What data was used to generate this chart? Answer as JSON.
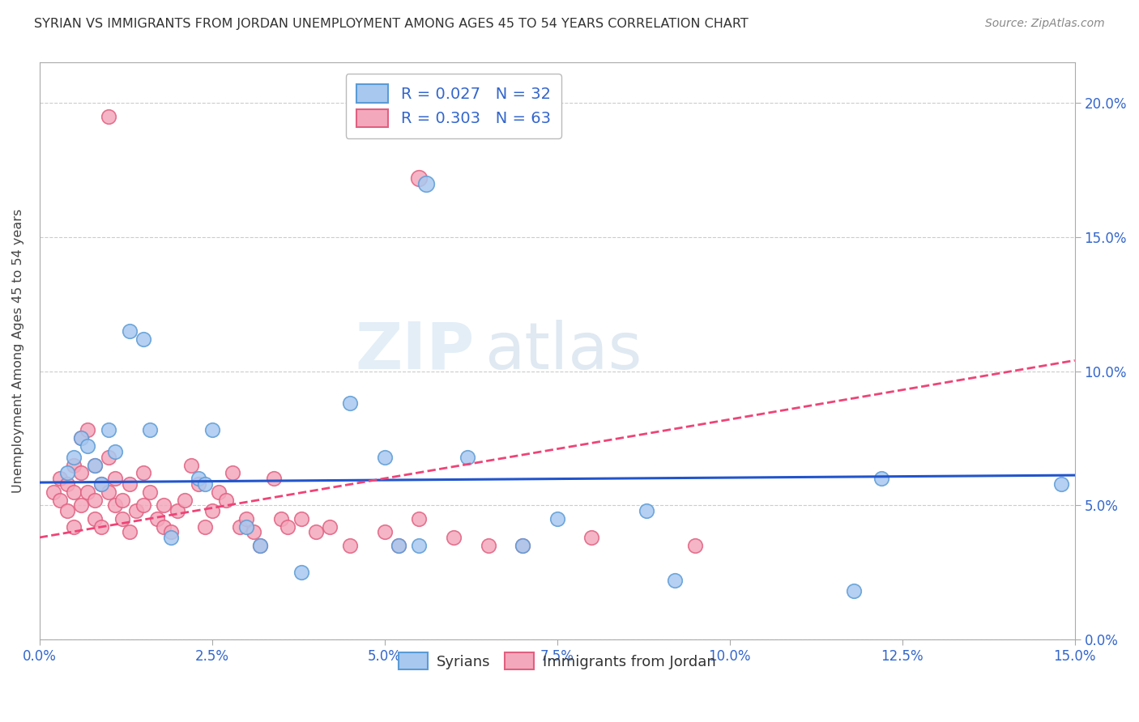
{
  "title": "SYRIAN VS IMMIGRANTS FROM JORDAN UNEMPLOYMENT AMONG AGES 45 TO 54 YEARS CORRELATION CHART",
  "source": "Source: ZipAtlas.com",
  "xlabel_ticks": [
    "0.0%",
    "2.5%",
    "5.0%",
    "7.5%",
    "10.0%",
    "12.5%",
    "15.0%"
  ],
  "xlabel_vals": [
    0.0,
    2.5,
    5.0,
    7.5,
    10.0,
    12.5,
    15.0
  ],
  "ylabel": "Unemployment Among Ages 45 to 54 years",
  "ylabel_ticks": [
    "0.0%",
    "5.0%",
    "10.0%",
    "15.0%",
    "20.0%"
  ],
  "ylabel_vals": [
    0.0,
    5.0,
    10.0,
    15.0,
    20.0
  ],
  "xlim": [
    0.0,
    15.0
  ],
  "ylim": [
    0.0,
    21.5
  ],
  "syrians_color": "#A8C8F0",
  "jordan_color": "#F4A8BC",
  "syrians_edge": "#5B9BD5",
  "jordan_edge": "#E06080",
  "regression_blue": "#2255CC",
  "regression_pink": "#EE4477",
  "regression_blue_solid": true,
  "regression_pink_dashed": true,
  "blue_slope": 0.018,
  "blue_intercept": 5.85,
  "pink_slope": 0.44,
  "pink_intercept": 3.8,
  "syrians_x": [
    0.4,
    0.5,
    0.6,
    0.7,
    0.8,
    0.9,
    1.0,
    1.1,
    1.3,
    1.5,
    1.6,
    1.9,
    2.3,
    2.4,
    2.5,
    3.0,
    3.2,
    3.8,
    4.5,
    5.0,
    5.2,
    5.5,
    6.2,
    7.0,
    7.5,
    8.8,
    9.2,
    11.8,
    12.2,
    14.8
  ],
  "syrians_y": [
    6.2,
    6.8,
    7.5,
    7.2,
    6.5,
    5.8,
    7.8,
    7.0,
    11.5,
    11.2,
    7.8,
    3.8,
    6.0,
    5.8,
    7.8,
    4.2,
    3.5,
    2.5,
    8.8,
    6.8,
    3.5,
    3.5,
    6.8,
    3.5,
    4.5,
    4.8,
    2.2,
    1.8,
    6.0,
    5.8
  ],
  "jordan_x": [
    0.2,
    0.3,
    0.3,
    0.4,
    0.4,
    0.5,
    0.5,
    0.5,
    0.6,
    0.6,
    0.6,
    0.7,
    0.7,
    0.8,
    0.8,
    0.8,
    0.9,
    0.9,
    1.0,
    1.0,
    1.1,
    1.1,
    1.2,
    1.2,
    1.3,
    1.3,
    1.4,
    1.5,
    1.5,
    1.6,
    1.7,
    1.8,
    1.8,
    1.9,
    2.0,
    2.1,
    2.2,
    2.3,
    2.4,
    2.5,
    2.6,
    2.7,
    2.8,
    2.9,
    3.0,
    3.1,
    3.2,
    3.4,
    3.5,
    3.6,
    3.8,
    4.0,
    4.2,
    4.5,
    5.0,
    5.2,
    5.5,
    6.0,
    6.5,
    7.0,
    8.0,
    9.5,
    1.0
  ],
  "jordan_y": [
    5.5,
    5.2,
    6.0,
    5.8,
    4.8,
    5.5,
    6.5,
    4.2,
    7.5,
    5.0,
    6.2,
    7.8,
    5.5,
    6.5,
    5.2,
    4.5,
    5.8,
    4.2,
    5.5,
    6.8,
    5.0,
    6.0,
    5.2,
    4.5,
    5.8,
    4.0,
    4.8,
    6.2,
    5.0,
    5.5,
    4.5,
    5.0,
    4.2,
    4.0,
    4.8,
    5.2,
    6.5,
    5.8,
    4.2,
    4.8,
    5.5,
    5.2,
    6.2,
    4.2,
    4.5,
    4.0,
    3.5,
    6.0,
    4.5,
    4.2,
    4.5,
    4.0,
    4.2,
    3.5,
    4.0,
    3.5,
    4.5,
    3.8,
    3.5,
    3.5,
    3.8,
    3.5,
    19.5
  ],
  "jordan_topleft_x": 1.0,
  "jordan_topleft_y": 19.5,
  "overlap_jordan_x": 5.5,
  "overlap_jordan_y": 17.2,
  "overlap_syrian_x": 5.6,
  "overlap_syrian_y": 17.0,
  "watermark_top": "ZIP",
  "watermark_bot": "atlas",
  "background_color": "#FFFFFF",
  "grid_color": "#CCCCCC"
}
